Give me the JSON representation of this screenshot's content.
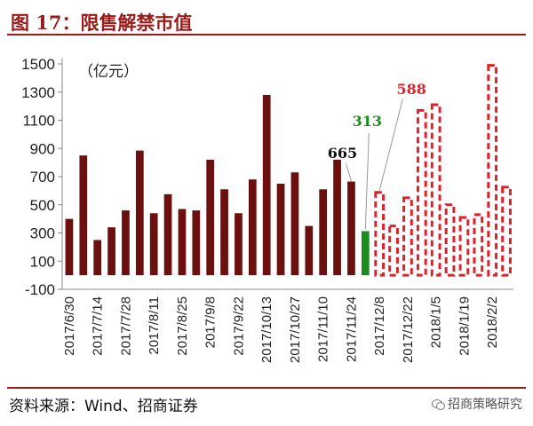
{
  "header": {
    "title": "图 17：限售解禁市值"
  },
  "footer": {
    "source": "资料来源：Wind、招商证券",
    "brand": "招商策略研究"
  },
  "colors": {
    "actual": "#6b0f0f",
    "current": "#1e8c1e",
    "forecast": "#e0202a",
    "title": "#9b1b1b"
  },
  "chart_data": {
    "type": "bar",
    "unit_label": "（亿元）",
    "ylim": [
      -100,
      1500
    ],
    "yticks": [
      -100,
      100,
      300,
      500,
      700,
      900,
      1100,
      1300,
      1500
    ],
    "xtick_labels": [
      "2017/6/30",
      "2017/7/14",
      "2017/7/28",
      "2017/8/11",
      "2017/8/25",
      "2017/9/8",
      "2017/9/22",
      "2017/10/13",
      "2017/10/27",
      "2017/11/10",
      "2017/11/24",
      "2017/12/8",
      "2017/12/22",
      "2018/1/5",
      "2018/1/19",
      "2018/2/2"
    ],
    "actual_values": [
      400,
      850,
      250,
      340,
      460,
      885,
      440,
      575,
      470,
      460,
      820,
      610,
      440,
      680,
      1280,
      650,
      730,
      350,
      610,
      820,
      665
    ],
    "current_values": [
      313
    ],
    "forecast_values": [
      588,
      350,
      550,
      1170,
      1210,
      500,
      410,
      430,
      1490,
      625
    ],
    "annotations": [
      {
        "text": "665",
        "color": "actual"
      },
      {
        "text": "313",
        "color": "current"
      },
      {
        "text": "588",
        "color": "forecast"
      }
    ]
  }
}
